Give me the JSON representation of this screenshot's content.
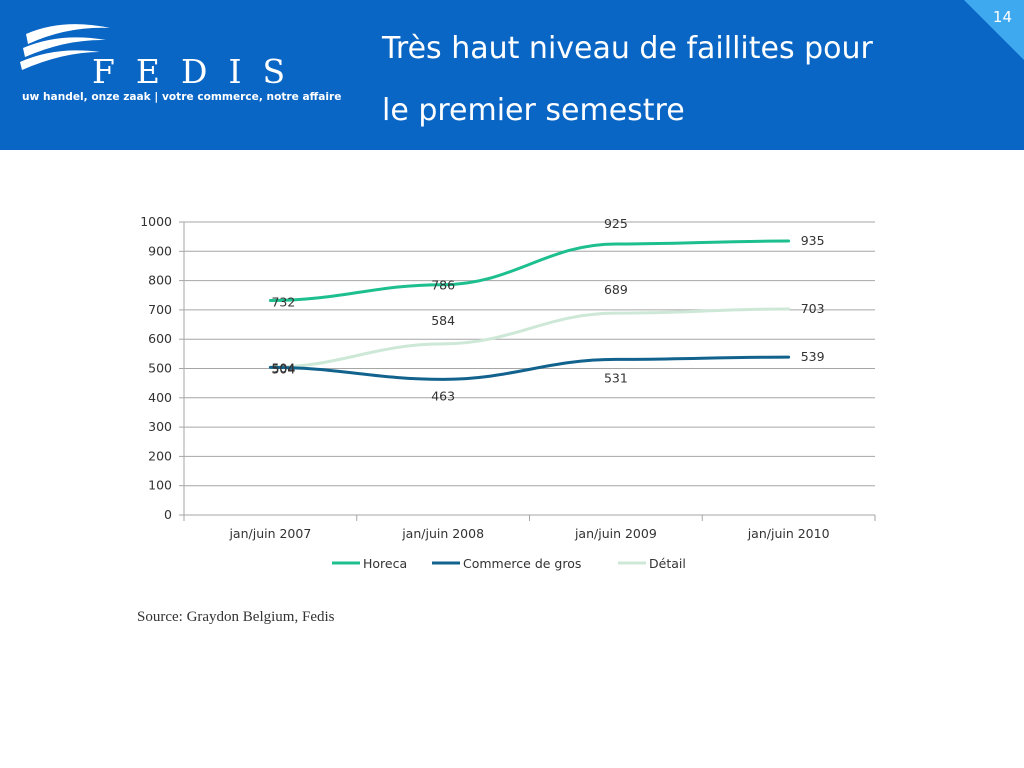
{
  "header": {
    "logo_text": "FEDIS",
    "tagline": "uw handel, onze zaak | votre commerce, notre affaire",
    "title_line1": "Très haut niveau de faillites pour",
    "title_line2": "le premier semestre",
    "page_number": "14",
    "brand_color": "#0a66c4"
  },
  "source": "Source: Graydon Belgium, Fedis",
  "chart_data": {
    "type": "line",
    "title": "",
    "xlabel": "",
    "ylabel": "",
    "categories": [
      "jan/juin 2007",
      "jan/juin 2008",
      "jan/juin 2009",
      "jan/juin 2010"
    ],
    "ylim": [
      0,
      1000
    ],
    "yticks": [
      0,
      100,
      200,
      300,
      400,
      500,
      600,
      700,
      800,
      900,
      1000
    ],
    "grid": true,
    "legend": "bottom",
    "series": [
      {
        "name": "Horeca",
        "values": [
          732,
          786,
          925,
          935
        ],
        "color": "#1dbf8e"
      },
      {
        "name": "Commerce de gros",
        "values": [
          504,
          463,
          531,
          539
        ],
        "color": "#12628e"
      },
      {
        "name": "Détail",
        "values": [
          504,
          584,
          689,
          703
        ],
        "color": "#cde8d6"
      }
    ]
  }
}
